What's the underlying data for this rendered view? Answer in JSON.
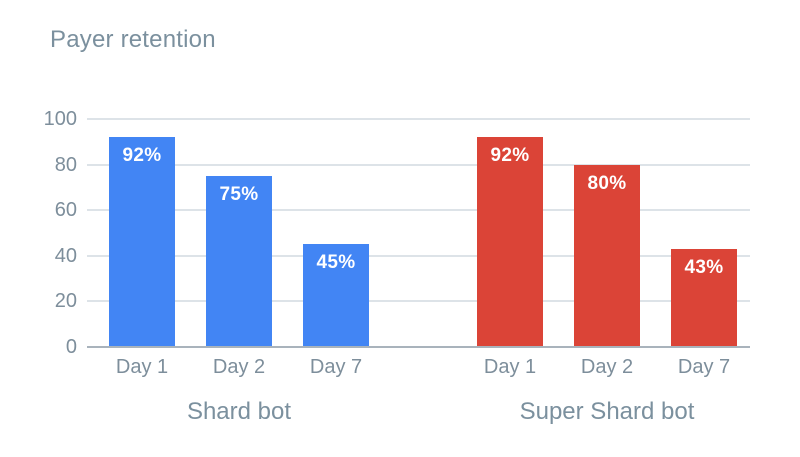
{
  "chart_data": {
    "type": "bar",
    "title": "Payer retention",
    "categories": [
      "Day 1",
      "Day 2",
      "Day 7"
    ],
    "series": [
      {
        "name": "Shard bot",
        "color": "#4285f4",
        "values": [
          92,
          75,
          45
        ],
        "labels": [
          "92%",
          "75%",
          "45%"
        ]
      },
      {
        "name": "Super Shard bot",
        "color": "#db4437",
        "values": [
          92,
          80,
          43
        ],
        "labels": [
          "92%",
          "80%",
          "43%"
        ]
      }
    ],
    "ylabel": "",
    "xlabel": "",
    "ylim": [
      0,
      100
    ],
    "yticks": [
      0,
      20,
      40,
      60,
      80,
      100
    ],
    "grid": true,
    "legend_position": "none",
    "colors": {
      "gridline": "#dde3e8",
      "baseline": "#a9b3bc",
      "axis_text": "#7d8e9b",
      "title_text": "#7b909e",
      "bar_value_text": "#ffffff",
      "background": "#ffffff"
    }
  }
}
